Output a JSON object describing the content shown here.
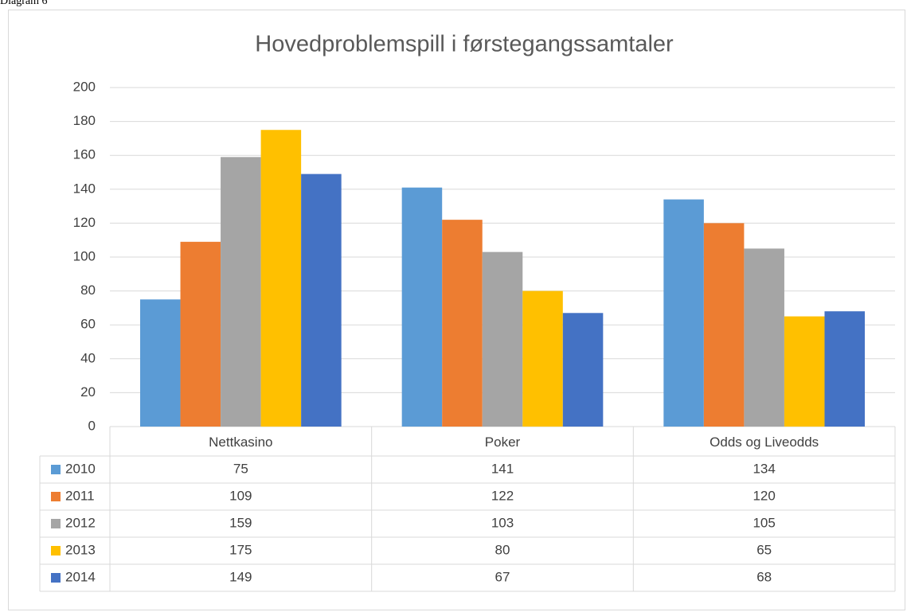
{
  "caption": "Diagram 6",
  "chart_data": {
    "type": "bar",
    "title": "Hovedproblemspill i førstegangssamtaler",
    "categories": [
      "Nettkasino",
      "Poker",
      "Odds og Liveodds"
    ],
    "series": [
      {
        "name": "2010",
        "color": "#5b9bd5",
        "values": [
          75,
          141,
          134
        ]
      },
      {
        "name": "2011",
        "color": "#ed7d31",
        "values": [
          109,
          122,
          120
        ]
      },
      {
        "name": "2012",
        "color": "#a5a5a5",
        "values": [
          159,
          103,
          105
        ]
      },
      {
        "name": "2013",
        "color": "#ffc000",
        "values": [
          175,
          80,
          65
        ]
      },
      {
        "name": "2014",
        "color": "#4472c4",
        "values": [
          149,
          67,
          68
        ]
      }
    ],
    "ylim": [
      0,
      200
    ],
    "yticks": [
      0,
      20,
      40,
      60,
      80,
      100,
      120,
      140,
      160,
      180,
      200
    ],
    "grid": true,
    "data_table": true
  }
}
